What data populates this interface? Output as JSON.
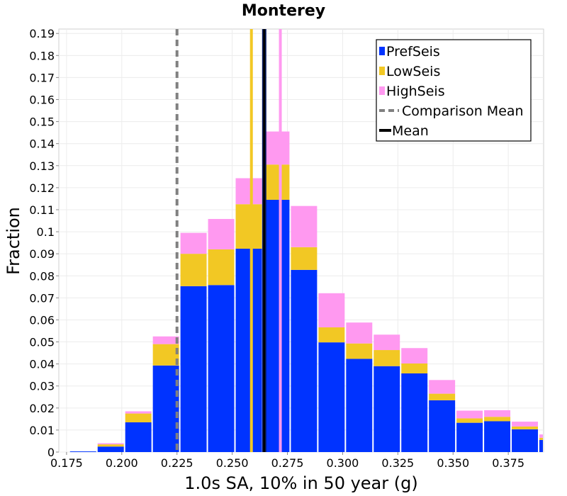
{
  "chart_data": {
    "type": "bar",
    "stacked": true,
    "title": "Monterey",
    "xlabel": "1.0s SA, 10% in 50 year (g)",
    "ylabel": "Fraction",
    "xlim": [
      0.1715,
      0.391
    ],
    "ylim": [
      0,
      0.192
    ],
    "x_ticks": [
      "0.175",
      "0.200",
      "0.225",
      "0.250",
      "0.275",
      "0.300",
      "0.325",
      "0.350",
      "0.375"
    ],
    "y_ticks": [
      "0",
      "0.01",
      "0.02",
      "0.03",
      "0.04",
      "0.05",
      "0.06",
      "0.07",
      "0.08",
      "0.09",
      "0.1",
      "0.11",
      "0.12",
      "0.13",
      "0.14",
      "0.15",
      "0.16",
      "0.17",
      "0.18",
      "0.19"
    ],
    "grid": true,
    "bin_width": 0.0125,
    "x": [
      0.1825,
      0.195,
      0.2075,
      0.22,
      0.2325,
      0.245,
      0.2575,
      0.27,
      0.2825,
      0.295,
      0.3075,
      0.32,
      0.3325,
      0.345,
      0.3575,
      0.37,
      0.3825,
      0.395
    ],
    "series": [
      {
        "name": "PrefSeis",
        "color": "#0033ff",
        "values": [
          0.0003,
          0.0025,
          0.0135,
          0.0393,
          0.0753,
          0.0758,
          0.0923,
          0.1145,
          0.0827,
          0.0498,
          0.0423,
          0.039,
          0.0357,
          0.0235,
          0.0133,
          0.014,
          0.0103,
          0.0055
        ]
      },
      {
        "name": "LowSeis",
        "color": "#f2c824",
        "values": [
          0.0,
          0.001,
          0.004,
          0.0097,
          0.0147,
          0.0162,
          0.0202,
          0.016,
          0.0103,
          0.0068,
          0.007,
          0.0073,
          0.0045,
          0.003,
          0.002,
          0.002,
          0.0013,
          0.001
        ]
      },
      {
        "name": "HighSeis",
        "color": "#ff99f0",
        "values": [
          0.0,
          0.0005,
          0.001,
          0.0035,
          0.0095,
          0.0138,
          0.0118,
          0.015,
          0.0187,
          0.0155,
          0.0095,
          0.007,
          0.007,
          0.0062,
          0.0035,
          0.003,
          0.0022,
          0.0015
        ]
      }
    ],
    "lines": [
      {
        "name": "Comparison Mean",
        "x": 0.225,
        "color": "#808080",
        "style": "dashed"
      },
      {
        "name": "Mean",
        "x": 0.2645,
        "color": "#000000",
        "style": "solid"
      },
      {
        "name": "LowSeis",
        "x": 0.2587,
        "color": "#f2c824",
        "style": "solid"
      },
      {
        "name": "HighSeis",
        "x": 0.2718,
        "color": "#ff99f0",
        "style": "solid"
      }
    ],
    "legend": {
      "position": "top-right",
      "entries": [
        {
          "label": "PrefSeis",
          "kind": "box",
          "color": "#0033ff"
        },
        {
          "label": "LowSeis",
          "kind": "box",
          "color": "#f2c824"
        },
        {
          "label": "HighSeis",
          "kind": "box",
          "color": "#ff99f0"
        },
        {
          "label": "Comparison Mean",
          "kind": "dash",
          "color": "#808080"
        },
        {
          "label": "Mean",
          "kind": "line",
          "color": "#000000"
        }
      ]
    }
  }
}
